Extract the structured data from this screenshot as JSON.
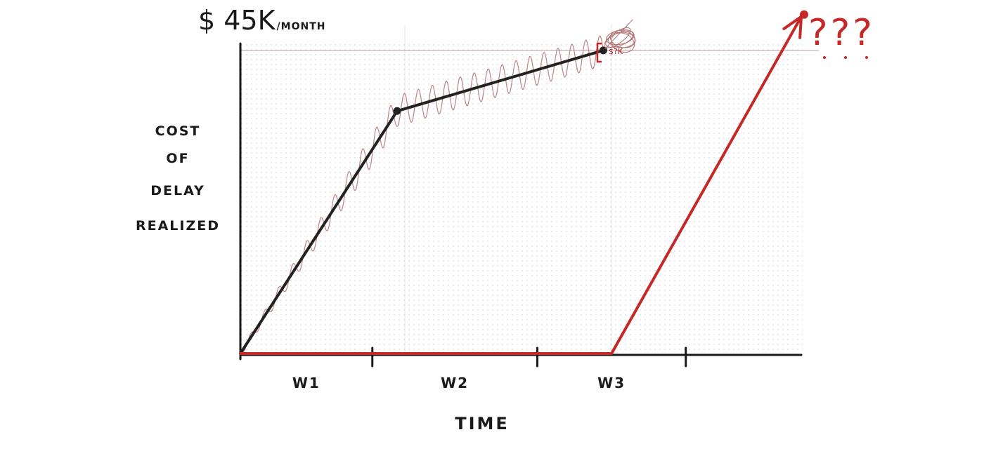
{
  "chart_data": {
    "type": "line",
    "title": "",
    "xlabel": "TIME",
    "ylabel_lines": [
      "COST",
      "OF",
      "DELAY",
      "REALIZED"
    ],
    "y_cap_label": {
      "big": "$ 45K",
      "small": "/MONTH"
    },
    "y_cap_value": 45,
    "categories": [
      "W1",
      "W2",
      "W3"
    ],
    "xlim": [
      0,
      3.4
    ],
    "ylim": [
      0,
      48
    ],
    "grid": true,
    "series": [
      {
        "color": "#222222",
        "points": [
          [
            0,
            0
          ],
          [
            0.95,
            36
          ],
          [
            2.2,
            45
          ]
        ]
      },
      {
        "color": "#c62828",
        "points": [
          [
            0,
            0
          ],
          [
            2.25,
            0
          ],
          [
            3.4,
            50
          ]
        ],
        "end_arrow": true
      }
    ],
    "oscillation": {
      "color": "#b07070",
      "from": 0,
      "to": 2.2
    },
    "annotations": {
      "bracket_label": "$?K",
      "question_marks": "???"
    }
  }
}
